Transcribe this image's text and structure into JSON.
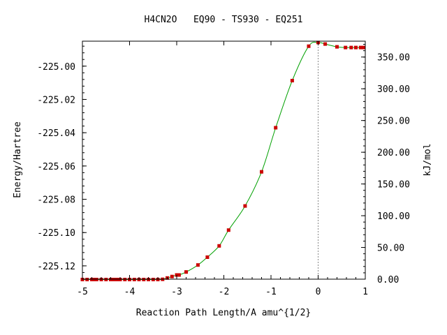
{
  "chart_data": {
    "type": "line",
    "title": "H4CN2O   EQ90 - TS930 - EQ251",
    "xlabel": "Reaction Path Length/A amu^{1/2}",
    "ylabel": "Energy/Hartree",
    "y2label": "kJ/mol",
    "xlim": [
      -5,
      1
    ],
    "ylim": [
      -225.128,
      -224.985
    ],
    "y2lim": [
      0,
      375
    ],
    "x_ticks": [
      "-5",
      "-4",
      "-3",
      "-2",
      "-1",
      "0",
      "1"
    ],
    "y_ticks": [
      "-225.00",
      "-225.02",
      "-225.04",
      "-225.06",
      "-225.08",
      "-225.10",
      "-225.12"
    ],
    "y2_ticks": [
      "0.00",
      "50.00",
      "100.00",
      "150.00",
      "200.00",
      "250.00",
      "300.00",
      "350.00"
    ],
    "ts_marker_x": 0,
    "grid": false,
    "colors": {
      "line": "#00a000",
      "marker": "#cc0000",
      "ts_line": "#888888"
    },
    "series": [
      {
        "x": [
          -5.0,
          -4.9,
          -4.8,
          -4.75,
          -4.7,
          -4.6,
          -4.5,
          -4.4,
          -4.35,
          -4.3,
          -4.25,
          -4.2,
          -4.1,
          -4.0,
          -3.9,
          -3.8,
          -3.7,
          -3.6,
          -3.5,
          -3.4,
          -3.3,
          -3.2,
          -3.1,
          -3.0,
          -2.95,
          -2.8,
          -2.55,
          -2.35,
          -2.1,
          -1.9,
          -1.55,
          -1.2,
          -0.9,
          -0.55,
          -0.2,
          0.0,
          0.15,
          0.4,
          0.58,
          0.7,
          0.8,
          0.9,
          0.97
        ],
        "y": [
          -225.1282,
          -225.1282,
          -225.1282,
          -225.1282,
          -225.1282,
          -225.1282,
          -225.1282,
          -225.1282,
          -225.1282,
          -225.1282,
          -225.1282,
          -225.1282,
          -225.1282,
          -225.1282,
          -225.1282,
          -225.1282,
          -225.1282,
          -225.1282,
          -225.1282,
          -225.1282,
          -225.1281,
          -225.1273,
          -225.1264,
          -225.1255,
          -225.1255,
          -225.1237,
          -225.1195,
          -225.1148,
          -225.108,
          -225.0985,
          -225.084,
          -225.0635,
          -225.037,
          -225.0087,
          -224.988,
          -224.9858,
          -224.9867,
          -224.9884,
          -224.9888,
          -224.9888,
          -224.9888,
          -224.9888,
          -224.9888
        ]
      }
    ]
  }
}
